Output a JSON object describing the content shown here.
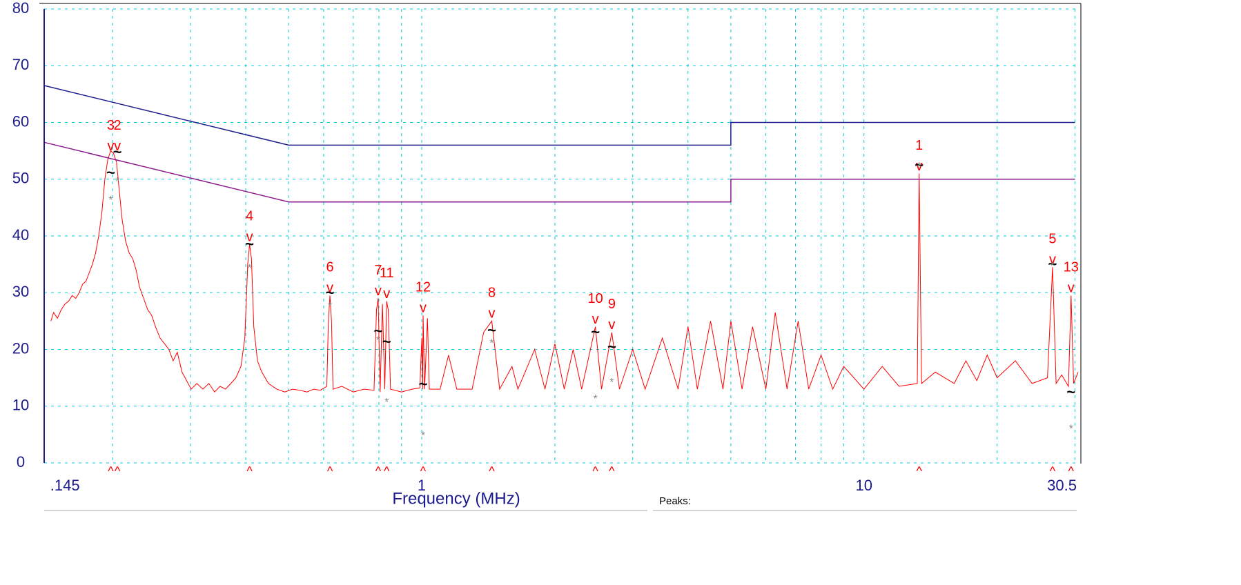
{
  "chart_data": {
    "type": "line",
    "x_label": "Frequency (MHz)",
    "footer_label": "Peaks:",
    "xscale": "log",
    "grid": true,
    "grid_color": "#00c8d8",
    "xlim": [
      0.14,
      30.5
    ],
    "ylim": [
      0,
      80
    ],
    "xticks": [
      {
        "value": 0.145,
        "label": ".145"
      },
      1,
      10,
      30.5
    ],
    "xgrid": [
      0.2,
      0.3,
      0.4,
      0.5,
      0.6,
      0.7,
      0.8,
      0.9,
      1,
      2,
      3,
      4,
      5,
      6,
      7,
      8,
      9,
      10,
      20,
      30
    ],
    "yticks": [
      0,
      10,
      20,
      30,
      40,
      50,
      60,
      70,
      80
    ],
    "series": [
      {
        "color": "#ff0000",
        "x": [
          0.145,
          0.147,
          0.15,
          0.153,
          0.156,
          0.159,
          0.162,
          0.165,
          0.168,
          0.171,
          0.174,
          0.177,
          0.18,
          0.183,
          0.186,
          0.189,
          0.192,
          0.195,
          0.198,
          0.201,
          0.204,
          0.207,
          0.21,
          0.214,
          0.218,
          0.222,
          0.226,
          0.23,
          0.235,
          0.24,
          0.245,
          0.25,
          0.256,
          0.262,
          0.268,
          0.274,
          0.28,
          0.287,
          0.294,
          0.301,
          0.31,
          0.32,
          0.33,
          0.34,
          0.35,
          0.36,
          0.37,
          0.38,
          0.39,
          0.398,
          0.404,
          0.408,
          0.412,
          0.417,
          0.425,
          0.435,
          0.45,
          0.47,
          0.49,
          0.51,
          0.53,
          0.55,
          0.57,
          0.59,
          0.61,
          0.615,
          0.62,
          0.625,
          0.63,
          0.66,
          0.7,
          0.74,
          0.78,
          0.79,
          0.797,
          0.805,
          0.815,
          0.825,
          0.833,
          0.84,
          0.85,
          0.9,
          0.95,
          0.99,
          1.0,
          1.005,
          1.007,
          1.015,
          1.03,
          1.04,
          1.1,
          1.15,
          1.2,
          1.3,
          1.38,
          1.44,
          1.5,
          1.6,
          1.65,
          1.8,
          1.9,
          2.0,
          2.1,
          2.2,
          2.3,
          2.47,
          2.55,
          2.69,
          2.8,
          3.0,
          3.2,
          3.5,
          3.8,
          4.0,
          4.2,
          4.5,
          4.8,
          5.0,
          5.3,
          5.6,
          6.0,
          6.3,
          6.7,
          7.1,
          7.5,
          8.0,
          8.5,
          9,
          10,
          11,
          12,
          13.2,
          13.33,
          13.5,
          14.5,
          16,
          17,
          18,
          19,
          20,
          22,
          24,
          26,
          26.7,
          27.2,
          28,
          29,
          29.4,
          29.8,
          30.5
        ],
        "values": [
          25,
          26.5,
          25.5,
          27,
          28,
          28.5,
          29.5,
          29,
          30,
          31.5,
          32,
          33.5,
          35,
          37,
          40,
          44,
          50,
          53.5,
          55,
          54.5,
          53,
          48,
          43,
          39,
          37,
          36,
          34,
          31,
          29,
          27,
          26,
          24,
          22,
          21,
          20,
          18,
          19.5,
          16,
          14.5,
          13,
          14,
          13,
          14,
          12.5,
          13.5,
          13,
          14,
          15,
          17,
          22,
          35,
          38.5,
          36,
          24,
          18,
          16,
          14,
          13,
          12.5,
          13,
          12.8,
          12.5,
          13,
          12.8,
          13.5,
          25,
          29.5,
          25,
          13,
          13.5,
          12.5,
          13,
          12.8,
          27,
          29,
          12.5,
          28,
          13,
          28.5,
          27,
          13,
          12.5,
          13,
          13.2,
          22,
          13,
          26,
          13,
          25.5,
          13,
          13,
          19,
          13,
          13,
          23,
          25,
          13,
          17,
          13,
          20,
          13,
          21,
          13,
          20,
          13,
          24,
          13,
          23,
          13,
          20,
          13,
          22,
          13,
          24,
          13,
          25,
          13,
          25,
          13,
          24,
          13,
          26.5,
          13,
          25,
          13,
          19,
          13,
          17,
          13,
          17,
          13.5,
          14,
          51,
          14,
          16,
          14,
          18,
          14.5,
          19,
          15,
          18,
          14,
          15,
          34.5,
          14,
          15.5,
          13.5,
          29.5,
          14,
          16
        ]
      },
      {
        "color": "#1c1c8c",
        "x": [
          0.14,
          0.5,
          5,
          5,
          30
        ],
        "values": [
          66.5,
          56,
          56,
          60,
          60
        ]
      },
      {
        "color": "#8b1a8b",
        "x": [
          0.14,
          0.5,
          5,
          5,
          30
        ],
        "values": [
          56.5,
          46,
          46,
          50,
          50
        ]
      }
    ],
    "marker_symbols": {
      "peak": "v",
      "freq": "^",
      "qp": "~",
      "avg": "*"
    },
    "peaks": [
      {
        "label": "1",
        "freq": 13.33,
        "peak": 51,
        "qp": 52.3,
        "avg": 52.7
      },
      {
        "label": "2",
        "freq": 0.205,
        "peak": 54.5,
        "qp": 54.6,
        "avg": 50.0
      },
      {
        "label": "3",
        "freq": 0.198,
        "peak": 54.5,
        "qp": 51.0,
        "avg": 46.7
      },
      {
        "label": "4",
        "freq": 0.408,
        "peak": 38.5,
        "qp": 38.4,
        "avg": 34.7
      },
      {
        "label": "5",
        "freq": 26.7,
        "peak": 34.5,
        "qp": 34.9,
        "avg": 35.1
      },
      {
        "label": "6",
        "freq": 0.62,
        "peak": 29.5,
        "qp": 29.8,
        "avg": 28.0
      },
      {
        "label": "7",
        "freq": 0.797,
        "peak": 29,
        "qp": 23.1,
        "avg": 22.0
      },
      {
        "label": "8",
        "freq": 1.44,
        "peak": 25,
        "qp": 23.2,
        "avg": 21.5
      },
      {
        "label": "9",
        "freq": 2.69,
        "peak": 23,
        "qp": 20.3,
        "avg": 14.6
      },
      {
        "label": "10",
        "freq": 2.47,
        "peak": 24,
        "qp": 22.9,
        "avg": 11.7
      },
      {
        "label": "11",
        "freq": 0.833,
        "peak": 28.5,
        "qp": 21.2,
        "avg": 11.1
      },
      {
        "label": "12",
        "freq": 1.007,
        "peak": 26,
        "qp": 13.7,
        "avg": 5.2
      },
      {
        "label": "13",
        "freq": 29.4,
        "peak": 29.5,
        "qp": 12.3,
        "avg": 6.4
      }
    ]
  }
}
